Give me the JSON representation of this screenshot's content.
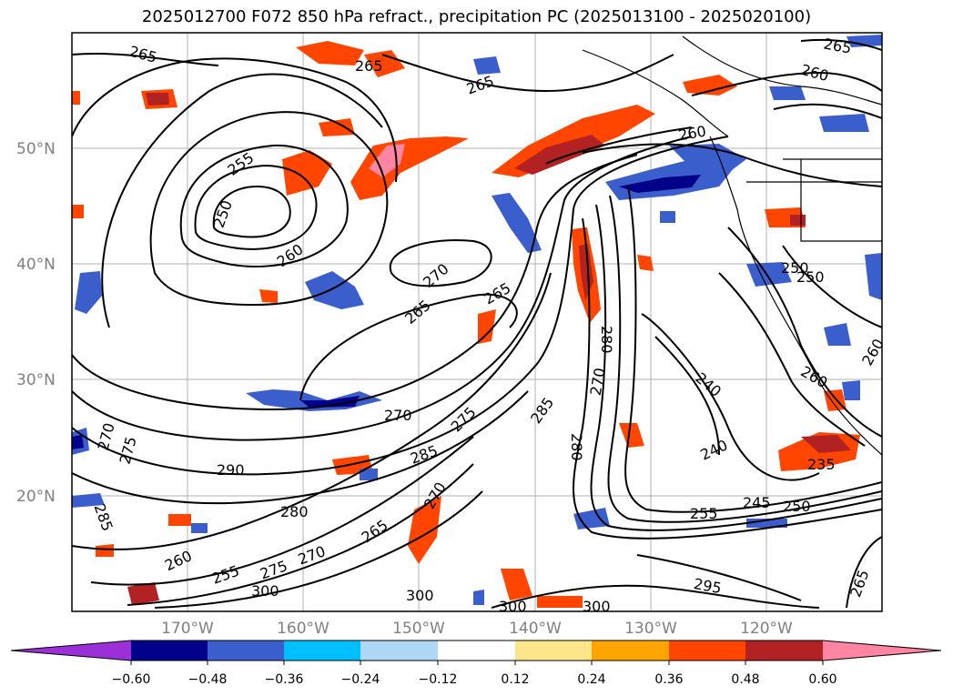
{
  "title": "2025012700 F072 850 hPa refract., precipitation PC (2025013100 - 2025020100)",
  "map": {
    "projection": "plate carree",
    "lon_range": [
      -180,
      -110
    ],
    "lat_range": [
      10,
      60
    ],
    "latitude_ticks": [
      "20°N",
      "30°N",
      "40°N",
      "50°N"
    ],
    "longitude_ticks": [
      "170°W",
      "160°W",
      "150°W",
      "140°W",
      "130°W",
      "120°W"
    ],
    "grid": true
  },
  "contour_labels": [
    "265",
    "265",
    "265",
    "260",
    "265",
    "250",
    "255",
    "260",
    "270",
    "265",
    "265",
    "260",
    "250",
    "250",
    "260",
    "260",
    "270",
    "275",
    "285",
    "270",
    "240",
    "240",
    "280",
    "285",
    "270",
    "275",
    "290",
    "280",
    "285",
    "270",
    "265",
    "260",
    "255",
    "275",
    "300",
    "300",
    "300",
    "300",
    "295",
    "265",
    "255",
    "245",
    "250",
    "235",
    "270",
    "280"
  ],
  "colorbar": {
    "colors": [
      "#9b30d9",
      "#00008b",
      "#3a5fcd",
      "#00bfff",
      "#add8f6",
      "#ffffff",
      "#fde68a",
      "#ffa500",
      "#ff4500",
      "#b22222",
      "#ff85a2"
    ],
    "tick_labels": [
      "−0.60",
      "−0.48",
      "−0.36",
      "−0.24",
      "−0.12",
      "0.12",
      "0.24",
      "0.36",
      "0.48",
      "0.60"
    ],
    "extend": "both"
  }
}
